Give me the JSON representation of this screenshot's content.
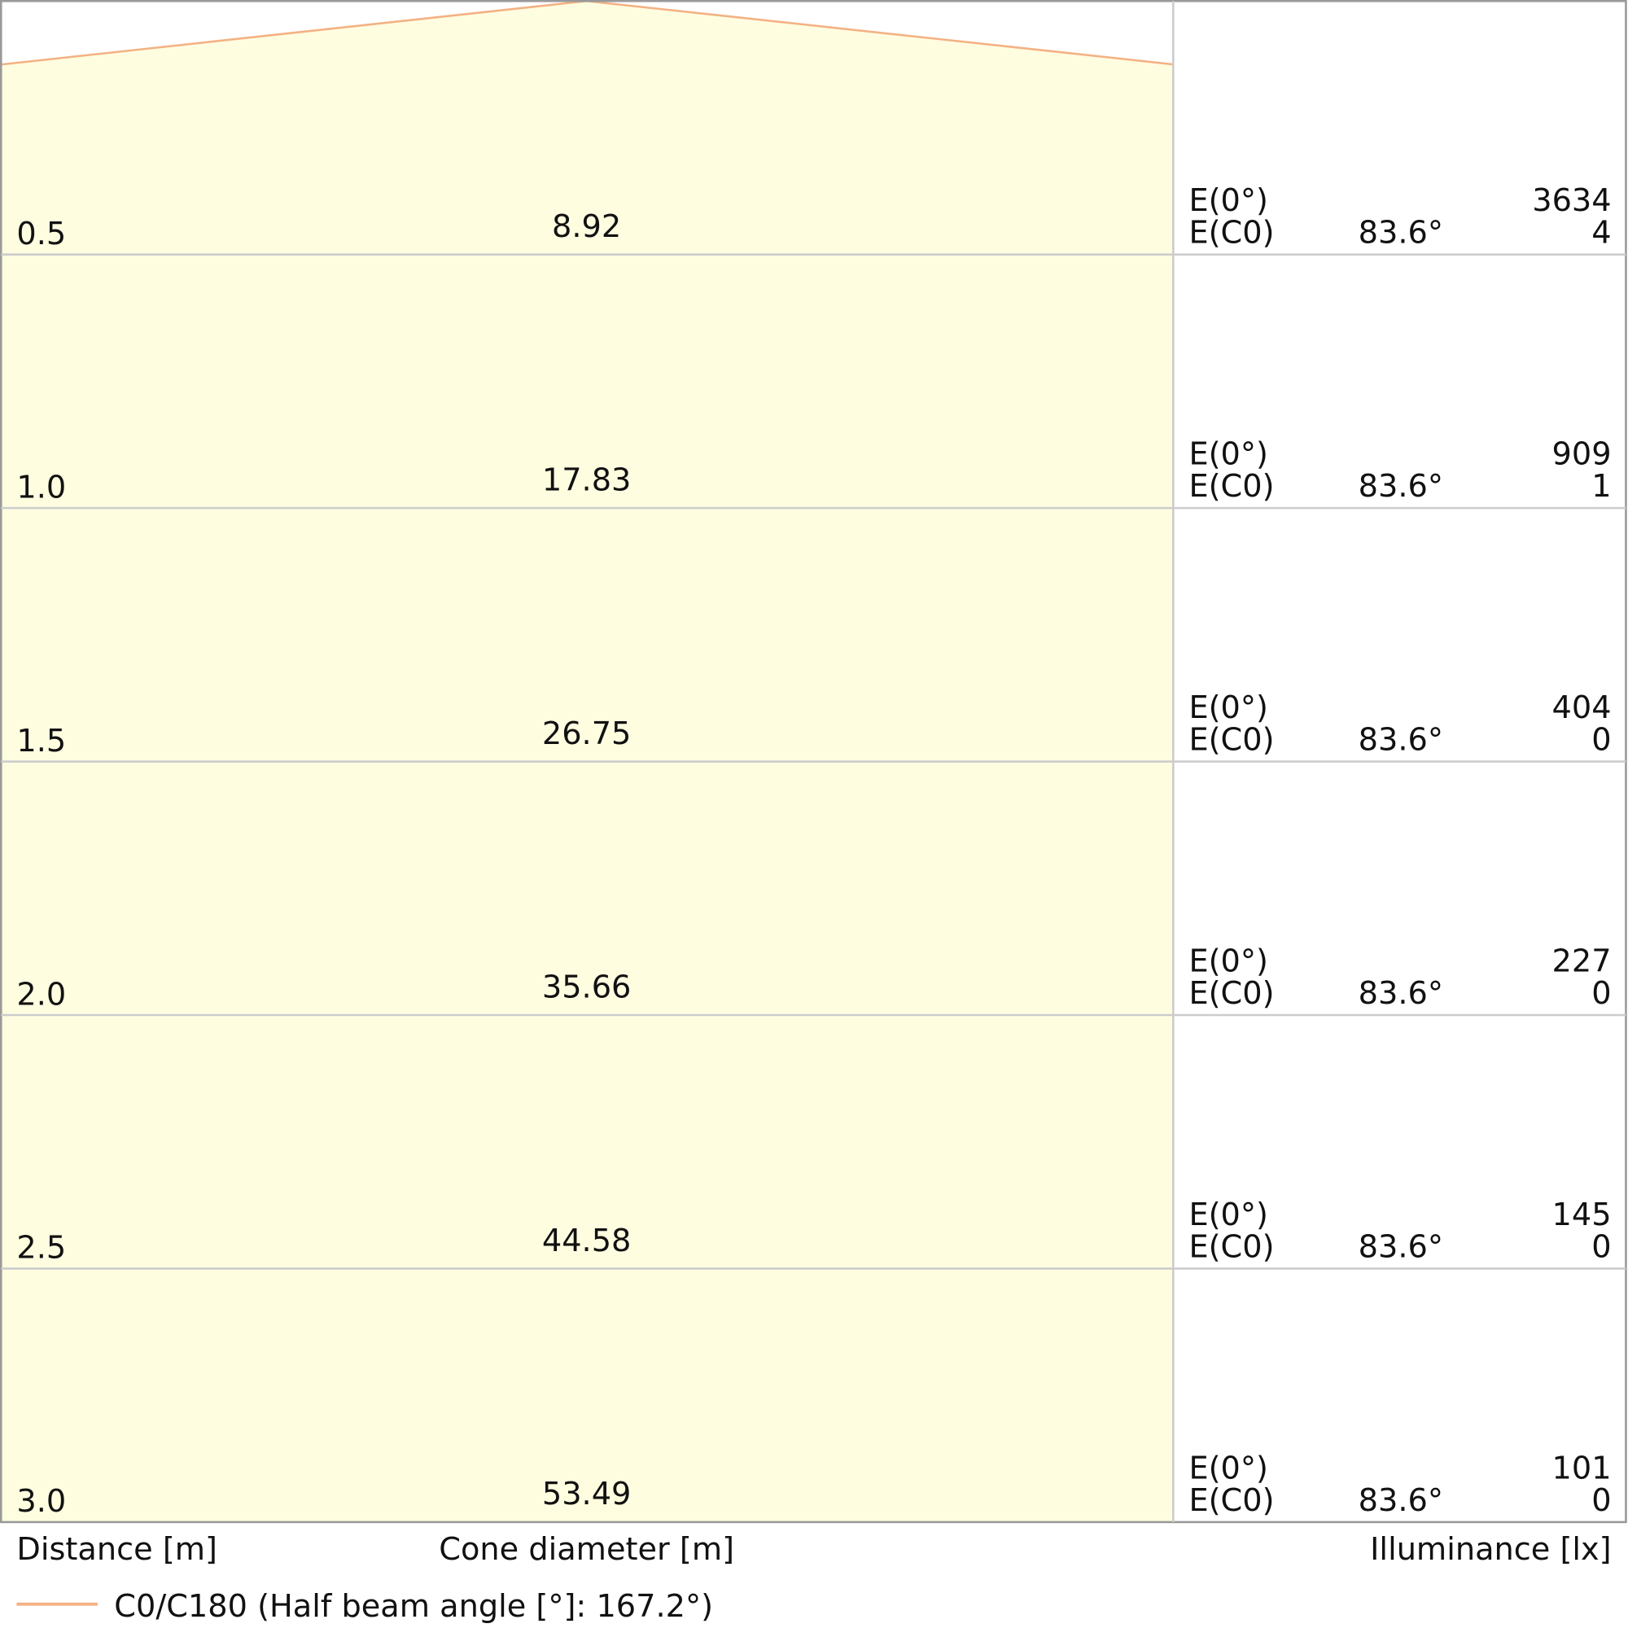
{
  "rows": [
    {
      "distance": "0.5",
      "diameter": "8.92",
      "e0_label": "E(0°)",
      "e0": "3634",
      "ec0_label": "E(C0)",
      "angle": "83.6°",
      "ec0": "4"
    },
    {
      "distance": "1.0",
      "diameter": "17.83",
      "e0_label": "E(0°)",
      "e0": "909",
      "ec0_label": "E(C0)",
      "angle": "83.6°",
      "ec0": "1"
    },
    {
      "distance": "1.5",
      "diameter": "26.75",
      "e0_label": "E(0°)",
      "e0": "404",
      "ec0_label": "E(C0)",
      "angle": "83.6°",
      "ec0": "0"
    },
    {
      "distance": "2.0",
      "diameter": "35.66",
      "e0_label": "E(0°)",
      "e0": "227",
      "ec0_label": "E(C0)",
      "angle": "83.6°",
      "ec0": "0"
    },
    {
      "distance": "2.5",
      "diameter": "44.58",
      "e0_label": "E(0°)",
      "e0": "145",
      "ec0_label": "E(C0)",
      "angle": "83.6°",
      "ec0": "0"
    },
    {
      "distance": "3.0",
      "diameter": "53.49",
      "e0_label": "E(0°)",
      "e0": "101",
      "ec0_label": "E(C0)",
      "angle": "83.6°",
      "ec0": "0"
    }
  ],
  "footer": {
    "distance": "Distance [m]",
    "diameter": "Cone diameter [m]",
    "illuminance": "Illuminance [lx]"
  },
  "legend": "C0/C180 (Half beam angle [°]: 167.2°)"
}
